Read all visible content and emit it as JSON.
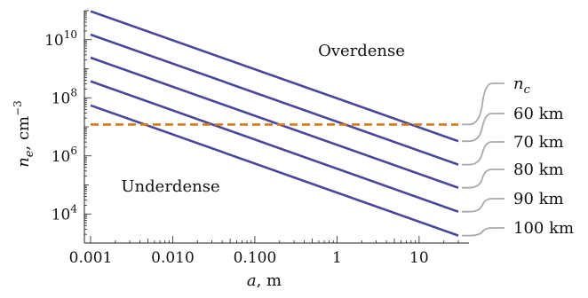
{
  "chart_data": {
    "type": "line",
    "xlabel_var": "a",
    "xlabel_unit": ", m",
    "ylabel_var": "n",
    "ylabel_sub": "e",
    "ylabel_unit": ", cm",
    "ylabel_exp": "−3",
    "x_scale": "log",
    "y_scale": "log",
    "xlim": [
      0.001,
      30
    ],
    "ylim": [
      1000,
      100000000000.0
    ],
    "grid": false,
    "x_ticks": [
      {
        "value": 0.001,
        "label": "0.001"
      },
      {
        "value": 0.01,
        "label": "0.010"
      },
      {
        "value": 0.1,
        "label": "0.100"
      },
      {
        "value": 1,
        "label": "1"
      },
      {
        "value": 10,
        "label": "10"
      }
    ],
    "y_ticks": [
      {
        "value": 10000,
        "base": "10",
        "exp": "4"
      },
      {
        "value": 1000000,
        "base": "10",
        "exp": "6"
      },
      {
        "value": 100000000,
        "base": "10",
        "exp": "8"
      },
      {
        "value": 10000000000,
        "base": "10",
        "exp": "10"
      }
    ],
    "series": [
      {
        "name": "60 km",
        "color": "#4b4699",
        "dash": "solid",
        "points": [
          [
            0.001,
            95000000000.0
          ],
          [
            30,
            3200000.0
          ]
        ]
      },
      {
        "name": "70 km",
        "color": "#4b4699",
        "dash": "solid",
        "points": [
          [
            0.001,
            15000000000.0
          ],
          [
            30,
            500000.0
          ]
        ]
      },
      {
        "name": "80 km",
        "color": "#4b4699",
        "dash": "solid",
        "points": [
          [
            0.001,
            2400000000.0
          ],
          [
            30,
            80000.0
          ]
        ]
      },
      {
        "name": "90 km",
        "color": "#4b4699",
        "dash": "solid",
        "points": [
          [
            0.001,
            370000000.0
          ],
          [
            30,
            12000.0
          ]
        ]
      },
      {
        "name": "100 km",
        "color": "#4b4699",
        "dash": "solid",
        "points": [
          [
            0.001,
            55000000.0
          ],
          [
            30,
            1800.0
          ]
        ]
      }
    ],
    "critical_line": {
      "label_var": "n",
      "label_sub": "c",
      "value": 12000000.0,
      "color": "#d2791a",
      "dash": "dashed"
    },
    "annotations": {
      "overdense": "Overdense",
      "underdense": "Underdense"
    },
    "legend_placement": "right",
    "legend_connector_color": "#aaaaaa"
  }
}
